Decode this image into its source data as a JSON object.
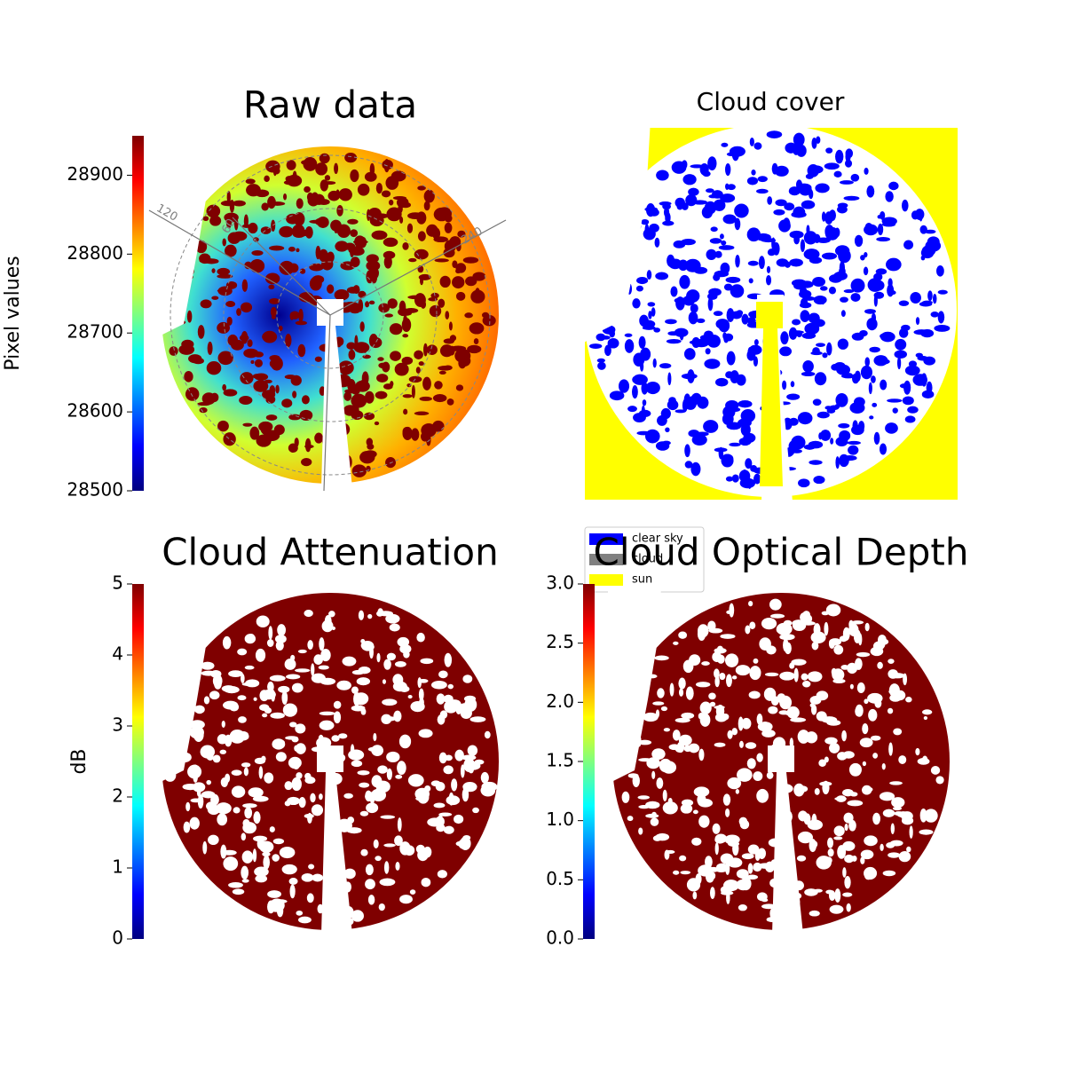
{
  "chart_data": [
    {
      "type": "image",
      "title": "Raw data",
      "colormap": "jet",
      "colorbar_label": "Pixel values",
      "ylim": [
        28500,
        28950
      ],
      "yticks": [
        28500,
        28600,
        28700,
        28800,
        28900
      ],
      "polar_labels": [
        "120",
        "60",
        "240"
      ]
    },
    {
      "type": "image",
      "title": "Cloud cover",
      "series": [
        {
          "name": "clear sky",
          "color": "#0000ff"
        },
        {
          "name": "cloud",
          "color": "#808080"
        },
        {
          "name": "sun",
          "color": "#ffff00"
        }
      ]
    },
    {
      "type": "image",
      "title": "Cloud Attenuation",
      "colormap": "jet",
      "colorbar_label": "dB",
      "ylim": [
        0,
        5
      ],
      "yticks": [
        0,
        1,
        2,
        3,
        4,
        5
      ]
    },
    {
      "type": "image",
      "title": "Cloud Optical Depth",
      "colormap": "jet",
      "ylim": [
        0,
        3
      ],
      "yticks": [
        {
          "value": 0,
          "label": "0.0"
        },
        {
          "value": 0.5,
          "label": "0.5"
        },
        {
          "value": 1,
          "label": "1.0"
        },
        {
          "value": 1.5,
          "label": "1.5"
        },
        {
          "value": 2,
          "label": "2.0"
        },
        {
          "value": 2.5,
          "label": "2.5"
        },
        {
          "value": 3,
          "label": "3.0"
        }
      ]
    }
  ]
}
